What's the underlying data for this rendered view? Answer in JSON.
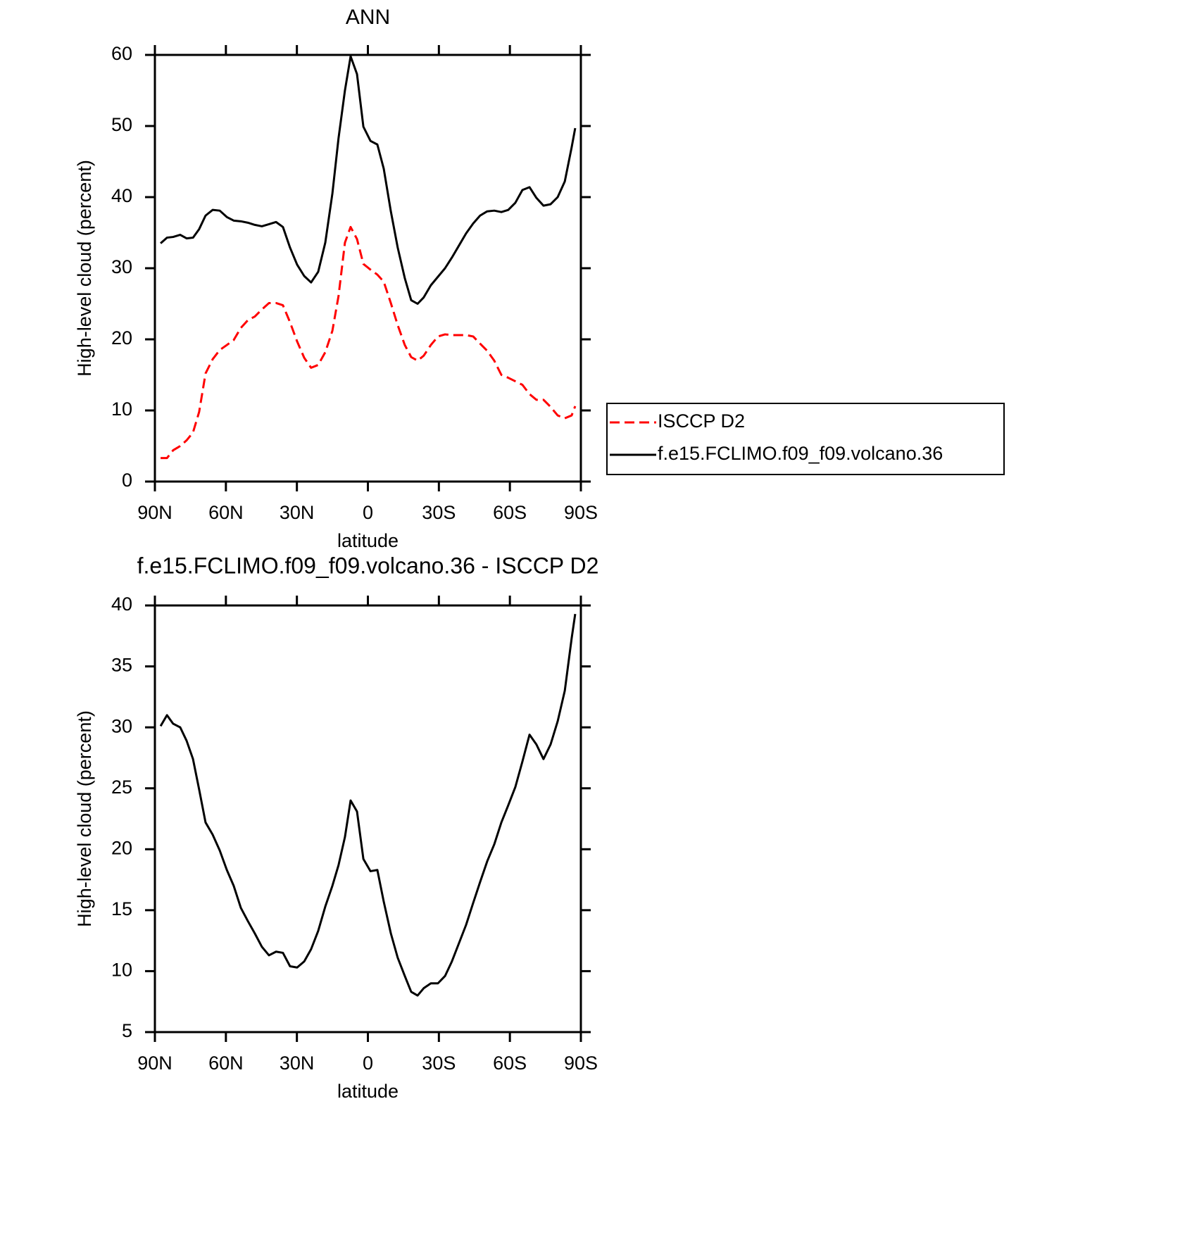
{
  "chart_data": [
    {
      "type": "line",
      "title": "ANN",
      "xlabel": "latitude",
      "ylabel": "High-level cloud (percent)",
      "x": [
        87.6,
        84.9,
        82.3,
        79.3,
        76.6,
        73.9,
        71.3,
        68.6,
        65.6,
        62.6,
        59.6,
        56.7,
        53.7,
        50.7,
        47.8,
        44.8,
        41.8,
        38.8,
        35.9,
        32.9,
        29.9,
        26.9,
        24.0,
        21.0,
        18.0,
        15.0,
        12.4,
        9.7,
        7.3,
        4.6,
        1.9,
        -1.1,
        -4.0,
        -6.7,
        -9.7,
        -12.6,
        -15.6,
        -18.3,
        -21.0,
        -23.6,
        -26.6,
        -29.6,
        -32.6,
        -35.5,
        -38.5,
        -41.5,
        -44.5,
        -47.4,
        -50.4,
        -53.4,
        -56.4,
        -59.3,
        -62.3,
        -65.3,
        -68.3,
        -71.2,
        -74.2,
        -77.2,
        -80.2,
        -83.2,
        -86.1,
        -87.6
      ],
      "series": [
        {
          "name": "ISCCP D2",
          "color": "#ff0000",
          "dashed": true,
          "values": [
            3.3,
            3.3,
            4.4,
            5.0,
            5.8,
            6.9,
            9.8,
            15.2,
            17.2,
            18.5,
            19.2,
            19.9,
            21.6,
            22.7,
            23.2,
            24.2,
            25.1,
            25.1,
            24.8,
            22.4,
            19.7,
            17.4,
            16.0,
            16.4,
            18.2,
            21.2,
            26.1,
            33.6,
            35.8,
            34.1,
            30.6,
            29.8,
            29.1,
            28.1,
            25.1,
            22.0,
            19.2,
            17.5,
            17.0,
            17.7,
            19.2,
            20.4,
            20.7,
            20.6,
            20.6,
            20.6,
            20.4,
            19.4,
            18.4,
            17.0,
            15.0,
            14.6,
            14.1,
            13.6,
            12.3,
            11.5,
            11.5,
            10.5,
            9.3,
            8.9,
            9.3,
            10.6
          ]
        },
        {
          "name": "f.e15.FCLIMO.f09_f09.volcano.36",
          "color": "#000000",
          "dashed": false,
          "values": [
            33.5,
            34.3,
            34.4,
            34.7,
            34.2,
            34.3,
            35.5,
            37.4,
            38.2,
            38.1,
            37.2,
            36.7,
            36.6,
            36.4,
            36.1,
            35.9,
            36.2,
            36.5,
            35.8,
            32.9,
            30.5,
            28.9,
            28.0,
            29.5,
            33.6,
            40.5,
            48.3,
            55.0,
            59.8,
            57.3,
            49.9,
            47.9,
            47.4,
            44.0,
            38.0,
            32.9,
            28.6,
            25.5,
            25.0,
            25.9,
            27.6,
            28.8,
            30.0,
            31.5,
            33.2,
            34.9,
            36.3,
            37.4,
            38.0,
            38.1,
            37.9,
            38.2,
            39.2,
            41.0,
            41.4,
            39.9,
            38.8,
            39.0,
            40.0,
            42.2,
            47.0,
            49.7
          ]
        }
      ],
      "xlim": [
        90,
        -90
      ],
      "xticks": [
        {
          "value": 90,
          "label": "90N"
        },
        {
          "value": 60,
          "label": "60N"
        },
        {
          "value": 30,
          "label": "30N"
        },
        0,
        {
          "value": -30,
          "label": "30S"
        },
        {
          "value": -60,
          "label": "60S"
        },
        {
          "value": -90,
          "label": "90S"
        }
      ],
      "ylim": [
        0,
        60
      ],
      "yticks": [
        0,
        10,
        20,
        30,
        40,
        50,
        60
      ],
      "legend": "right"
    },
    {
      "type": "line",
      "title": "f.e15.FCLIMO.f09_f09.volcano.36 - ISCCP D2",
      "xlabel": "latitude",
      "ylabel": "High-level cloud (percent)",
      "x": [
        87.6,
        84.9,
        82.3,
        79.3,
        76.6,
        73.9,
        71.3,
        68.6,
        65.6,
        62.6,
        59.6,
        56.7,
        53.7,
        50.7,
        47.8,
        44.8,
        41.8,
        38.8,
        35.9,
        32.9,
        29.9,
        26.9,
        24.0,
        21.0,
        18.0,
        15.0,
        12.4,
        9.7,
        7.3,
        4.6,
        1.9,
        -1.1,
        -4.0,
        -6.7,
        -9.7,
        -12.6,
        -15.6,
        -18.3,
        -21.0,
        -23.6,
        -26.6,
        -29.6,
        -32.6,
        -35.5,
        -38.5,
        -41.5,
        -44.5,
        -47.4,
        -50.4,
        -53.4,
        -56.4,
        -59.3,
        -62.3,
        -65.3,
        -68.3,
        -71.2,
        -74.2,
        -77.2,
        -80.2,
        -83.2,
        -86.1,
        -87.6
      ],
      "series": [
        {
          "color": "#000000",
          "dashed": false,
          "values": [
            30.1,
            31.0,
            30.3,
            30.0,
            28.9,
            27.4,
            24.9,
            22.2,
            21.2,
            19.9,
            18.3,
            17.0,
            15.2,
            14.1,
            13.1,
            12.0,
            11.3,
            11.6,
            11.5,
            10.4,
            10.3,
            10.8,
            11.8,
            13.3,
            15.3,
            17.0,
            18.7,
            21.0,
            24.0,
            23.1,
            19.2,
            18.2,
            18.3,
            15.7,
            13.1,
            11.1,
            9.6,
            8.3,
            8.0,
            8.6,
            9.0,
            9.0,
            9.6,
            10.8,
            12.3,
            13.8,
            15.6,
            17.3,
            19.0,
            20.4,
            22.2,
            23.6,
            25.1,
            27.2,
            29.4,
            28.6,
            27.4,
            28.6,
            30.5,
            33.0,
            37.3,
            39.3
          ]
        }
      ],
      "xlim": [
        90,
        -90
      ],
      "xticks": [
        {
          "value": 90,
          "label": "90N"
        },
        {
          "value": 60,
          "label": "60N"
        },
        {
          "value": 30,
          "label": "30N"
        },
        0,
        {
          "value": -30,
          "label": "30S"
        },
        {
          "value": -60,
          "label": "60S"
        },
        {
          "value": -90,
          "label": "90S"
        }
      ],
      "ylim": [
        5,
        40
      ],
      "yticks": [
        5,
        10,
        15,
        20,
        25,
        30,
        35,
        40
      ]
    }
  ]
}
